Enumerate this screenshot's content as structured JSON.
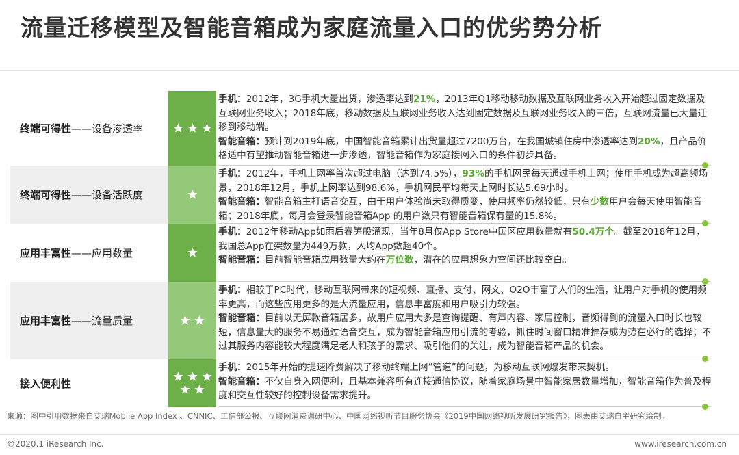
{
  "header": {
    "title": "流量迁移模型及智能音箱成为家庭流量入口的优劣势分析"
  },
  "table": {
    "rows": [
      {
        "label": {
          "main": "终端可得性",
          "sub": "——设备渗透率"
        },
        "stars": 3,
        "paragraphs": [
          [
            {
              "text": "手机：",
              "style": "label"
            },
            {
              "text": "2012年，3G手机大量出货，渗透率达到",
              "style": "plain"
            },
            {
              "text": "21%",
              "style": "highlight"
            },
            {
              "text": "，2013年Q1移动移动数据及互联网业务收入开始超过固定数据及互联网业务收入；2018年底，移动数据及互联网业务收入达到固定数据及互联网业务收入的三倍，互联网流量已大量迁移到移动端。",
              "style": "plain"
            }
          ],
          [
            {
              "text": "智能音箱：",
              "style": "label"
            },
            {
              "text": "预计到2019年底，中国智能音箱累计出货量超过7200万台，在我国城镇住房中渗透率达到",
              "style": "plain"
            },
            {
              "text": "20%",
              "style": "highlight"
            },
            {
              "text": "，且产品价格适中有望推动智能音箱进一步渗透，智能音箱作为家庭接网入口的条件初步具备。",
              "style": "plain"
            }
          ]
        ]
      },
      {
        "label": {
          "main": "终端可得性",
          "sub": "——设备活跃度"
        },
        "stars": 1,
        "paragraphs": [
          [
            {
              "text": "手机：",
              "style": "label"
            },
            {
              "text": "2012年，手机上网率首次超过电脑（达到74.5%），",
              "style": "plain"
            },
            {
              "text": "93%",
              "style": "highlight"
            },
            {
              "text": "的手机网民每天通过手机上网；使用手机成为超高频场景，2018年12月，手机上网率达到98.6%，手机网民平均每天上网时长达5.69小时。",
              "style": "plain"
            }
          ],
          [
            {
              "text": "智能音箱：",
              "style": "label"
            },
            {
              "text": "智能音箱主打语音交互，由于用户体验尚未取得质变，使用频率仍然较低，只有",
              "style": "plain"
            },
            {
              "text": "少数",
              "style": "highlight"
            },
            {
              "text": "用户会每天使用智能音箱；2018年底，每月会登录智能音箱App 的用户数只有智能音箱保有量的15.8%。",
              "style": "plain"
            }
          ]
        ]
      },
      {
        "label": {
          "main": "应用丰富性",
          "sub": "——应用数量"
        },
        "stars": 1,
        "paragraphs": [
          [
            {
              "text": "手机：",
              "style": "label"
            },
            {
              "text": "2012年移动App如雨后春笋般涌现，当年8月仅App Store中国区应用数量就有",
              "style": "plain"
            },
            {
              "text": "50.4万个",
              "style": "highlight"
            },
            {
              "text": "。截至2018年12月，我国总App在架数量为449万款，人均App数超40个。",
              "style": "plain"
            }
          ],
          [
            {
              "text": "智能音箱：",
              "style": "label"
            },
            {
              "text": "目前智能音箱应用数量大约在",
              "style": "plain"
            },
            {
              "text": "万位数",
              "style": "highlight"
            },
            {
              "text": "，潜在的应用想象力空间还比较空白。",
              "style": "plain"
            }
          ]
        ]
      },
      {
        "label": {
          "main": "应用丰富性",
          "sub": "——流量质量"
        },
        "stars": 2,
        "paragraphs": [
          [
            {
              "text": "手机：",
              "style": "label"
            },
            {
              "text": "相较于PC时代，移动互联网带来的短视频、直播、支付、网文、O2O丰富了人们的生活，让用户对手机的使用频率更高，而这些应用更多的是大流量应用，信息丰富度和用户吸引力较强。",
              "style": "plain"
            }
          ],
          [
            {
              "text": "智能音箱：",
              "style": "label"
            },
            {
              "text": "目前以无屏款音箱居多，故用户应用大多是查询提醒、有声内容、家居控制，音频得到的流量入口时长也较短，信息量大的服务不易通过语音交互，成为智能音箱应用引流的考验，抓住时间窗口精准推荐成为势在必行的选择；不过其服务内容能较大程度满足老人和孩子的需求、吸引他们的关注，成为智能音箱产品的机会。",
              "style": "plain"
            }
          ]
        ]
      },
      {
        "label": {
          "main": "接入便利性"
        },
        "stars": 5,
        "paragraphs": [
          [
            {
              "text": "手机：",
              "style": "label"
            },
            {
              "text": "2015年开始的提速降费解决了移动终端上网“管道”的问题，为移动互联网爆发带来契机。",
              "style": "plain"
            }
          ],
          [
            {
              "text": "智能音箱：",
              "style": "label"
            },
            {
              "text": "不仅自身入网便利，且基本兼容所有连接通信协议，随着家庭场景中智能家居数量增加，智能音箱作为普及程度和交互性较好的控制设备需求提升。",
              "style": "plain"
            }
          ]
        ]
      }
    ]
  },
  "footer": {
    "source": "来源：图中引用数据来自艾瑞Mobile App Index 、CNNIC、工信部公报、互联网消费调研中心、中国网络视听节目服务协会《2019中国网络视听发展研究报告》，图表由艾瑞自主研究绘制。",
    "copyright": "©2020.1 iResearch Inc.",
    "website": "www.iresearch.com.cn"
  }
}
